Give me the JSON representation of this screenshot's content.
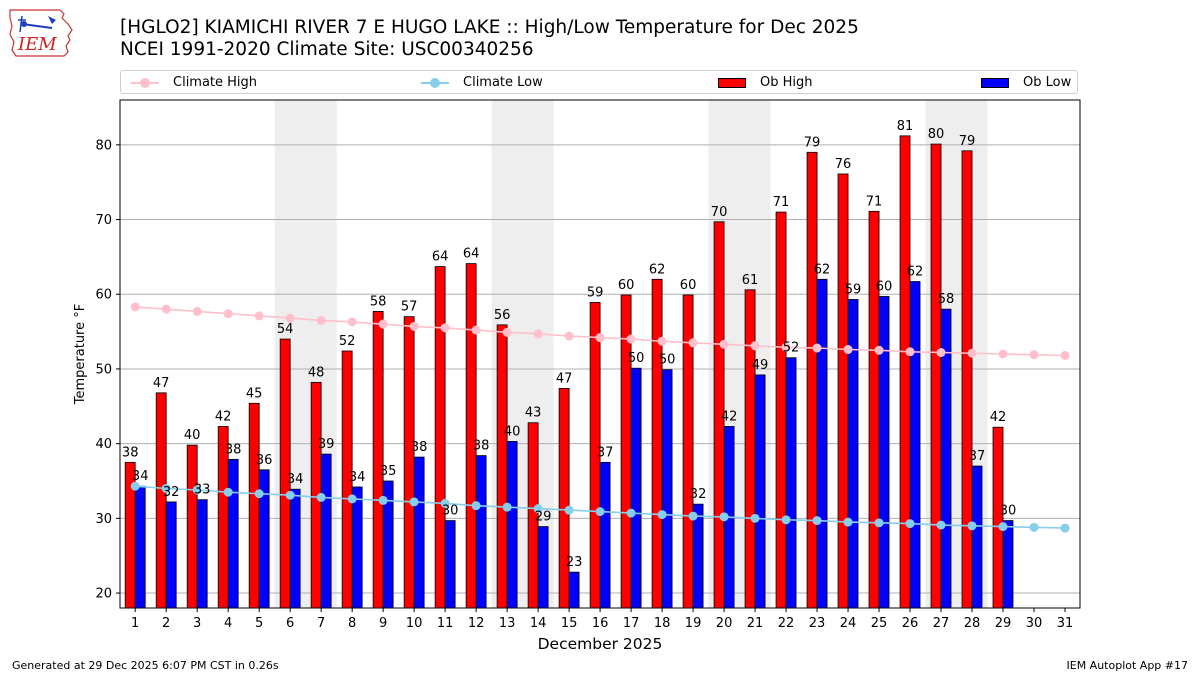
{
  "header": {
    "title_line1": "[HGLO2] KIAMICHI RIVER 7 E HUGO LAKE :: High/Low Temperature for Dec 2025",
    "title_line2": "NCEI 1991-2020 Climate Site: USC00340256",
    "logo_text": "IEM"
  },
  "legend": {
    "climate_high": "Climate High",
    "climate_low": "Climate Low",
    "ob_high": "Ob High",
    "ob_low": "Ob Low"
  },
  "colors": {
    "ob_high": "#ff0000",
    "ob_low": "#0000ff",
    "climate_high": "#ffc0cb",
    "climate_low": "#87ceeb",
    "weekend_shade": "#eeeeee",
    "grid": "#b0b0b0"
  },
  "chart_data": {
    "type": "bar",
    "xlabel": "December 2025",
    "ylabel": "Temperature °F",
    "ylim": [
      18,
      86
    ],
    "yticks": [
      20,
      30,
      40,
      50,
      60,
      70,
      80
    ],
    "grid": "horizontal",
    "legend_position": "top",
    "categories": [
      "1",
      "2",
      "3",
      "4",
      "5",
      "6",
      "7",
      "8",
      "9",
      "10",
      "11",
      "12",
      "13",
      "14",
      "15",
      "16",
      "17",
      "18",
      "19",
      "20",
      "21",
      "22",
      "23",
      "24",
      "25",
      "26",
      "27",
      "28",
      "29",
      "30",
      "31"
    ],
    "shaded_days": [
      6,
      7,
      13,
      14,
      20,
      21,
      27,
      28
    ],
    "series": [
      {
        "name": "Ob High",
        "kind": "bar",
        "values": [
          37.5,
          46.8,
          39.8,
          42.3,
          45.4,
          54,
          48.2,
          52.4,
          57.7,
          57,
          63.7,
          64.1,
          55.9,
          42.8,
          47.4,
          58.9,
          59.9,
          62,
          59.9,
          69.7,
          60.6,
          71,
          79,
          76.1,
          71.1,
          81.2,
          80.1,
          79.2,
          42.2,
          null,
          null
        ],
        "labels": [
          "38",
          "47",
          "40",
          "42",
          "45",
          "54",
          "48",
          "52",
          "58",
          "57",
          "64",
          "64",
          "56",
          "43",
          "47",
          "59",
          "60",
          "62",
          "60",
          "70",
          "61",
          "71",
          "79",
          "76",
          "71",
          "81",
          "80",
          "79",
          "42",
          "",
          ""
        ]
      },
      {
        "name": "Ob Low",
        "kind": "bar",
        "values": [
          34.3,
          32.2,
          32.5,
          37.9,
          36.5,
          33.9,
          38.6,
          34.2,
          35,
          38.2,
          29.7,
          38.4,
          40.3,
          28.9,
          22.8,
          37.5,
          50.1,
          49.9,
          31.9,
          42.3,
          49.2,
          51.5,
          62,
          59.3,
          59.7,
          61.7,
          58,
          37,
          29.7,
          null,
          null
        ],
        "labels": [
          "34",
          "32",
          "33",
          "38",
          "36",
          "34",
          "39",
          "34",
          "35",
          "38",
          "30",
          "38",
          "40",
          "29",
          "23",
          "37",
          "50",
          "50",
          "32",
          "42",
          "49",
          "52",
          "62",
          "59",
          "60",
          "62",
          "58",
          "37",
          "30",
          "",
          ""
        ]
      },
      {
        "name": "Climate High",
        "kind": "line",
        "values": [
          58.3,
          58.0,
          57.7,
          57.4,
          57.1,
          56.8,
          56.5,
          56.3,
          56.0,
          55.7,
          55.5,
          55.2,
          54.9,
          54.7,
          54.4,
          54.2,
          54.0,
          53.7,
          53.5,
          53.3,
          53.1,
          52.9,
          52.8,
          52.6,
          52.5,
          52.3,
          52.2,
          52.1,
          52.0,
          51.9,
          51.8
        ]
      },
      {
        "name": "Climate Low",
        "kind": "line",
        "values": [
          34.3,
          34.0,
          33.8,
          33.5,
          33.3,
          33.1,
          32.8,
          32.6,
          32.4,
          32.2,
          32.0,
          31.7,
          31.5,
          31.3,
          31.1,
          30.9,
          30.7,
          30.5,
          30.3,
          30.2,
          30.0,
          29.8,
          29.7,
          29.5,
          29.4,
          29.3,
          29.1,
          29.0,
          28.9,
          28.8,
          28.7
        ]
      }
    ]
  },
  "footer": {
    "left": "Generated at 29 Dec 2025 6:07 PM CST in 0.26s",
    "right": "IEM Autoplot App #17"
  }
}
